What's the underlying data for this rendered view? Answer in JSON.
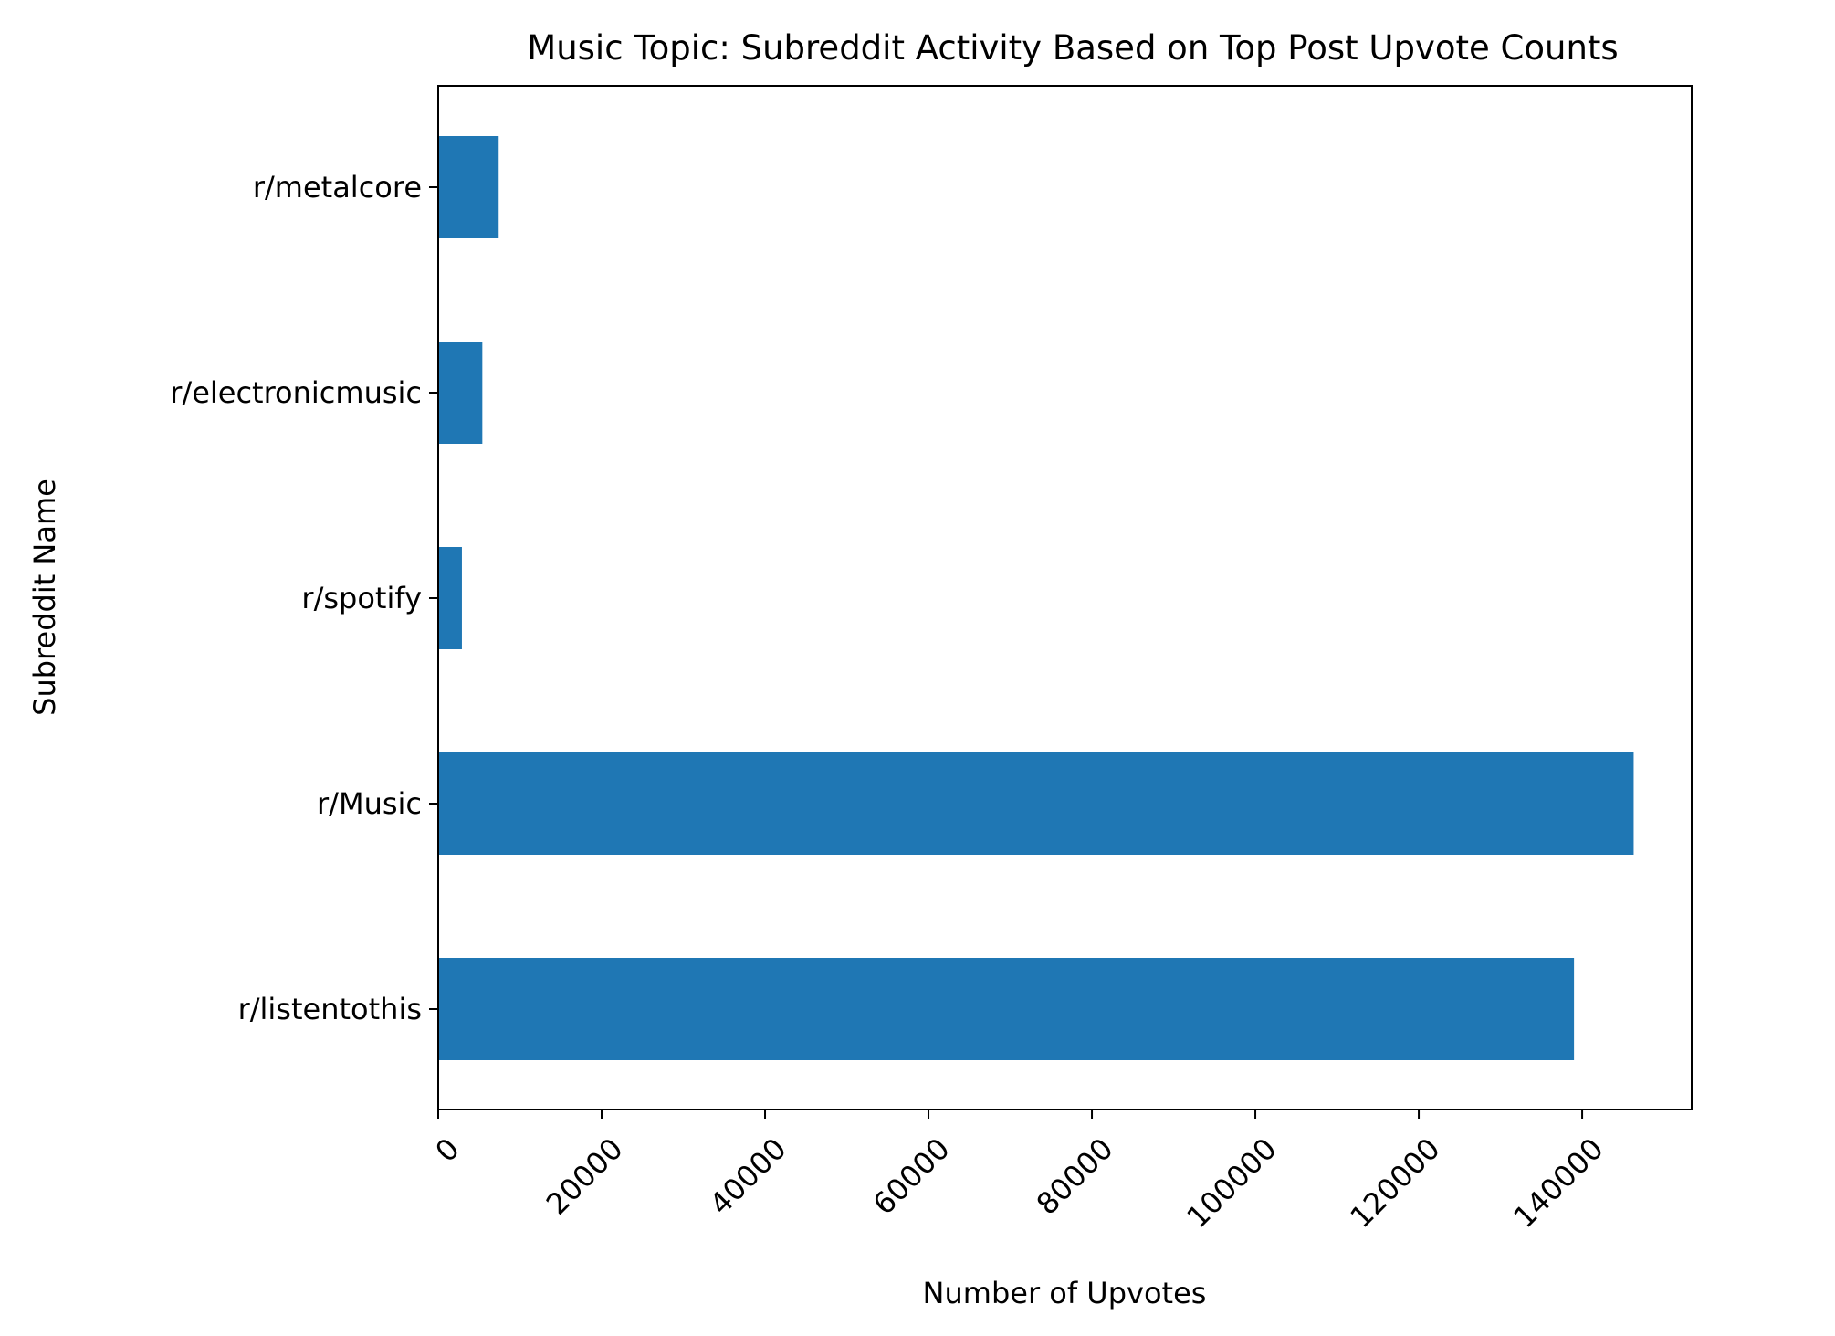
{
  "chart_data": {
    "type": "bar",
    "orientation": "horizontal",
    "title": "Music Topic: Subreddit Activity Based on Top Post Upvote Counts",
    "xlabel": "Number of Upvotes",
    "ylabel": "Subreddit Name",
    "categories": [
      "r/listentothis",
      "r/Music",
      "r/spotify",
      "r/electronicmusic",
      "r/metalcore"
    ],
    "values": [
      139000,
      146300,
      2900,
      5400,
      7400
    ],
    "xlim": [
      0,
      153400
    ],
    "xticks": [
      0,
      20000,
      40000,
      60000,
      80000,
      100000,
      120000,
      140000
    ],
    "xtick_labels": [
      "0",
      "20000",
      "40000",
      "60000",
      "80000",
      "100000",
      "120000",
      "140000"
    ],
    "xtick_rotation": 45,
    "grid": false,
    "legend": "none",
    "bar_color": "#1f77b4"
  }
}
